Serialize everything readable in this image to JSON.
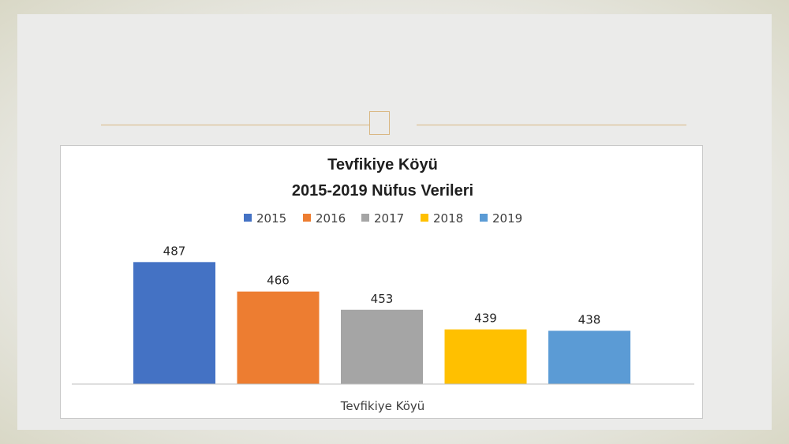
{
  "chart_data": {
    "type": "bar",
    "title": "Tevfikiye Köyü",
    "subtitle": "2015-2019 Nüfus Verileri",
    "categories": [
      "Tevfikiye Köyü"
    ],
    "series": [
      {
        "name": "2015",
        "values": [
          487
        ],
        "color": "#4472c4"
      },
      {
        "name": "2016",
        "values": [
          466
        ],
        "color": "#ed7d31"
      },
      {
        "name": "2017",
        "values": [
          453
        ],
        "color": "#a5a5a5"
      },
      {
        "name": "2018",
        "values": [
          439
        ],
        "color": "#ffc000"
      },
      {
        "name": "2019",
        "values": [
          438
        ],
        "color": "#5b9bd5"
      }
    ],
    "xlabel": "",
    "ylabel": "",
    "ylim": [
      400,
      490
    ],
    "grid": false,
    "legend": "top",
    "data_labels": true
  }
}
